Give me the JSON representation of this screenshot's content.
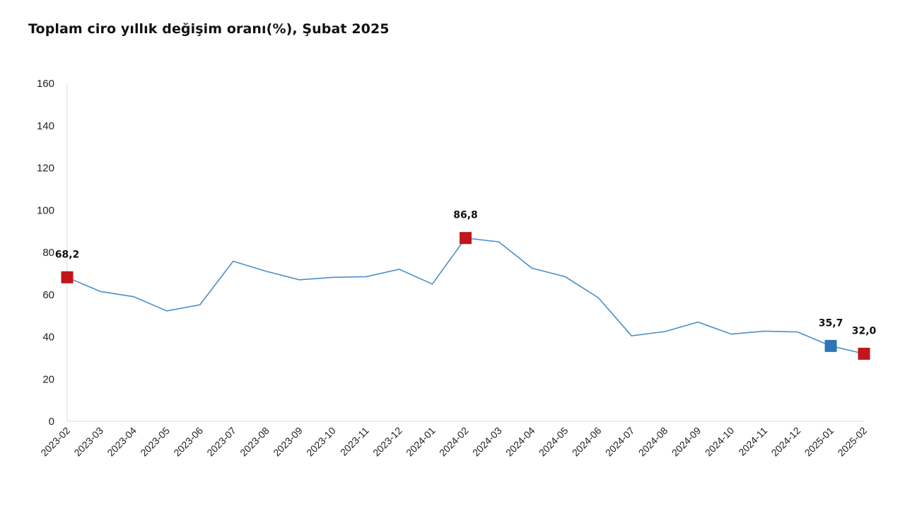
{
  "chart_data": {
    "type": "line",
    "title": "Toplam ciro yıllık değişim oranı(%), Şubat 2025",
    "xlabel": "",
    "ylabel": "",
    "ylim": [
      0,
      160
    ],
    "yticks": [
      0,
      20,
      40,
      60,
      80,
      100,
      120,
      140,
      160
    ],
    "grid": false,
    "legend": "none",
    "categories": [
      "2023-02",
      "2023-03",
      "2023-04",
      "2023-05",
      "2023-06",
      "2023-07",
      "2023-08",
      "2023-09",
      "2023-10",
      "2023-11",
      "2023-12",
      "2024-01",
      "2024-02",
      "2024-03",
      "2024-04",
      "2024-05",
      "2024-06",
      "2024-07",
      "2024-08",
      "2024-09",
      "2024-10",
      "2024-11",
      "2024-12",
      "2025-01",
      "2025-02"
    ],
    "series": [
      {
        "color": "#4a8fc8",
        "values": [
          68.2,
          61.5,
          59.0,
          52.3,
          55.2,
          75.8,
          71.0,
          67.0,
          68.2,
          68.5,
          72.0,
          65.0,
          86.8,
          85.0,
          72.5,
          68.5,
          58.5,
          40.5,
          42.5,
          47.0,
          41.3,
          42.7,
          42.3,
          35.7,
          32.0
        ]
      }
    ],
    "highlights": [
      {
        "category": "2023-02",
        "label": "68,2",
        "color": "#c0161c"
      },
      {
        "category": "2024-02",
        "label": "86,8",
        "color": "#c0161c"
      },
      {
        "category": "2025-01",
        "label": "35,7",
        "color": "#2e75b6"
      },
      {
        "category": "2025-02",
        "label": "32,0",
        "color": "#c0161c"
      }
    ]
  }
}
